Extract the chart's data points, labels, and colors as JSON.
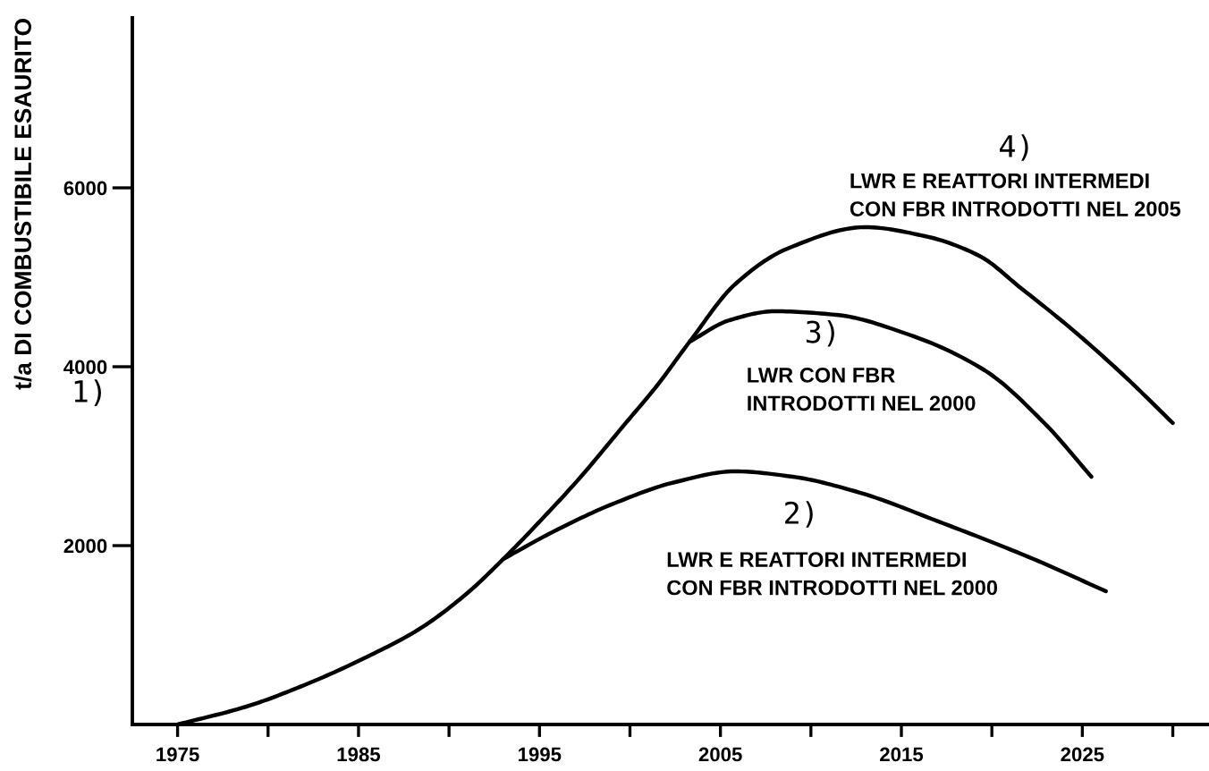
{
  "chart_data": {
    "type": "line",
    "ylabel": "t/a DI COMBUSTIBILE ESAURITO",
    "xlim": [
      1972.5,
      2032
    ],
    "ylim": [
      0,
      7900
    ],
    "xticks": [
      1975,
      {
        "value": 1980,
        "label": null
      },
      1985,
      {
        "value": 1990,
        "label": null
      },
      1995,
      {
        "value": 2000,
        "label": null
      },
      2005,
      {
        "value": 2010,
        "label": null
      },
      2015,
      {
        "value": 2020,
        "label": null
      },
      2025,
      {
        "value": 2030,
        "label": null
      }
    ],
    "yticks": [
      2000,
      4000,
      6000
    ],
    "grid": false,
    "marker": "none",
    "line_style": "solid",
    "annotations": [
      "1)",
      "2)",
      "LWR E REATTORI INTERMEDI\nCON FBR INTRODOTTI NEL 2000",
      "3)",
      "LWR CON FBR\nINTRODOTTI NEL 2000",
      "4)",
      "LWR E REATTORI INTERMEDI\nCON FBR INTRODOTTI NEL 2005"
    ],
    "series": [
      {
        "color": "#000000",
        "x": [
          1993.0,
          1995.9,
          1999.1,
          2002.5,
          2005.8,
          2009.0,
          2012.4,
          2017.3,
          2022.3,
          2026.3
        ],
        "values": [
          1850,
          2170,
          2470,
          2710,
          2830,
          2770,
          2610,
          2250,
          1850,
          1490
        ]
      },
      {
        "color": "#000000",
        "x": [
          2003.3,
          2005.5,
          2008.0,
          2011.4,
          2015.4,
          2019.6,
          2022.9,
          2025.5
        ],
        "values": [
          4280,
          4520,
          4620,
          4580,
          4360,
          3960,
          3370,
          2770
        ]
      },
      {
        "color": "#000000",
        "x": [
          1975,
          1978.8,
          1982.0,
          1985.3,
          1988.3,
          1990.9,
          1993.0,
          1995.2,
          1997.2,
          1999.6,
          2001.5,
          2003.3,
          2005.8,
          2008.7,
          2013.0,
          2016.3,
          2019.3,
          2021.6,
          2024.3,
          2027.2,
          2030.0
        ],
        "values": [
          0,
          200,
          440,
          740,
          1060,
          1450,
          1850,
          2310,
          2750,
          3330,
          3790,
          4280,
          4920,
          5320,
          5560,
          5460,
          5240,
          4880,
          4440,
          3920,
          3370
        ]
      }
    ]
  }
}
